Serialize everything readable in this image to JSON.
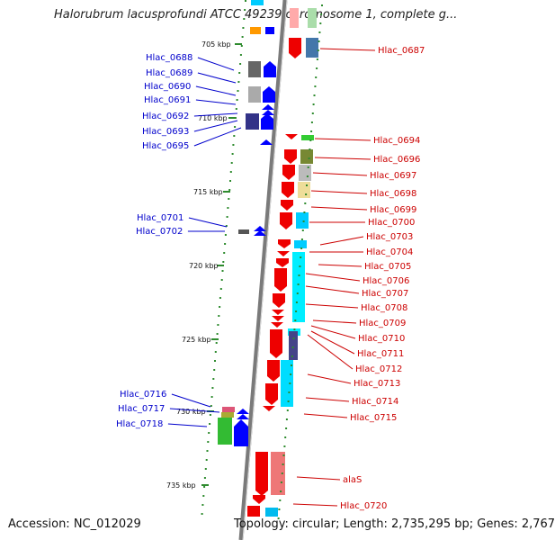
{
  "title": "Halorubrum lacusprofundi ATCC 49239 chromosome 1, complete g...",
  "footer": {
    "accession": "Accession: NC_012029",
    "summary": "Topology: circular; Length: 2,735,295 bp; Genes: 2,767"
  },
  "scale_labels": [
    "705 kbp",
    "710 kbp",
    "715 kbp",
    "720 kbp",
    "725 kbp",
    "730 kbp",
    "735 kbp"
  ],
  "genes_left": [
    "Hlac_0688",
    "Hlac_0689",
    "Hlac_0690",
    "Hlac_0691",
    "Hlac_0692",
    "Hlac_0693",
    "Hlac_0695",
    "Hlac_0701",
    "Hlac_0702",
    "Hlac_0716",
    "Hlac_0717",
    "Hlac_0718"
  ],
  "genes_right": [
    "Hlac_0687",
    "Hlac_0694",
    "Hlac_0696",
    "Hlac_0697",
    "Hlac_0698",
    "Hlac_0699",
    "Hlac_0700",
    "Hlac_0703",
    "Hlac_0704",
    "Hlac_0705",
    "Hlac_0706",
    "Hlac_0707",
    "Hlac_0708",
    "Hlac_0709",
    "Hlac_0710",
    "Hlac_0711",
    "Hlac_0712",
    "Hlac_0713",
    "Hlac_0714",
    "Hlac_0715",
    "alaS",
    "Hlac_0720"
  ],
  "colors": {
    "left_label": "#0000cc",
    "right_label": "#cc0000",
    "tick": "#2e8b2e",
    "backbone": "#7a7a7a"
  }
}
